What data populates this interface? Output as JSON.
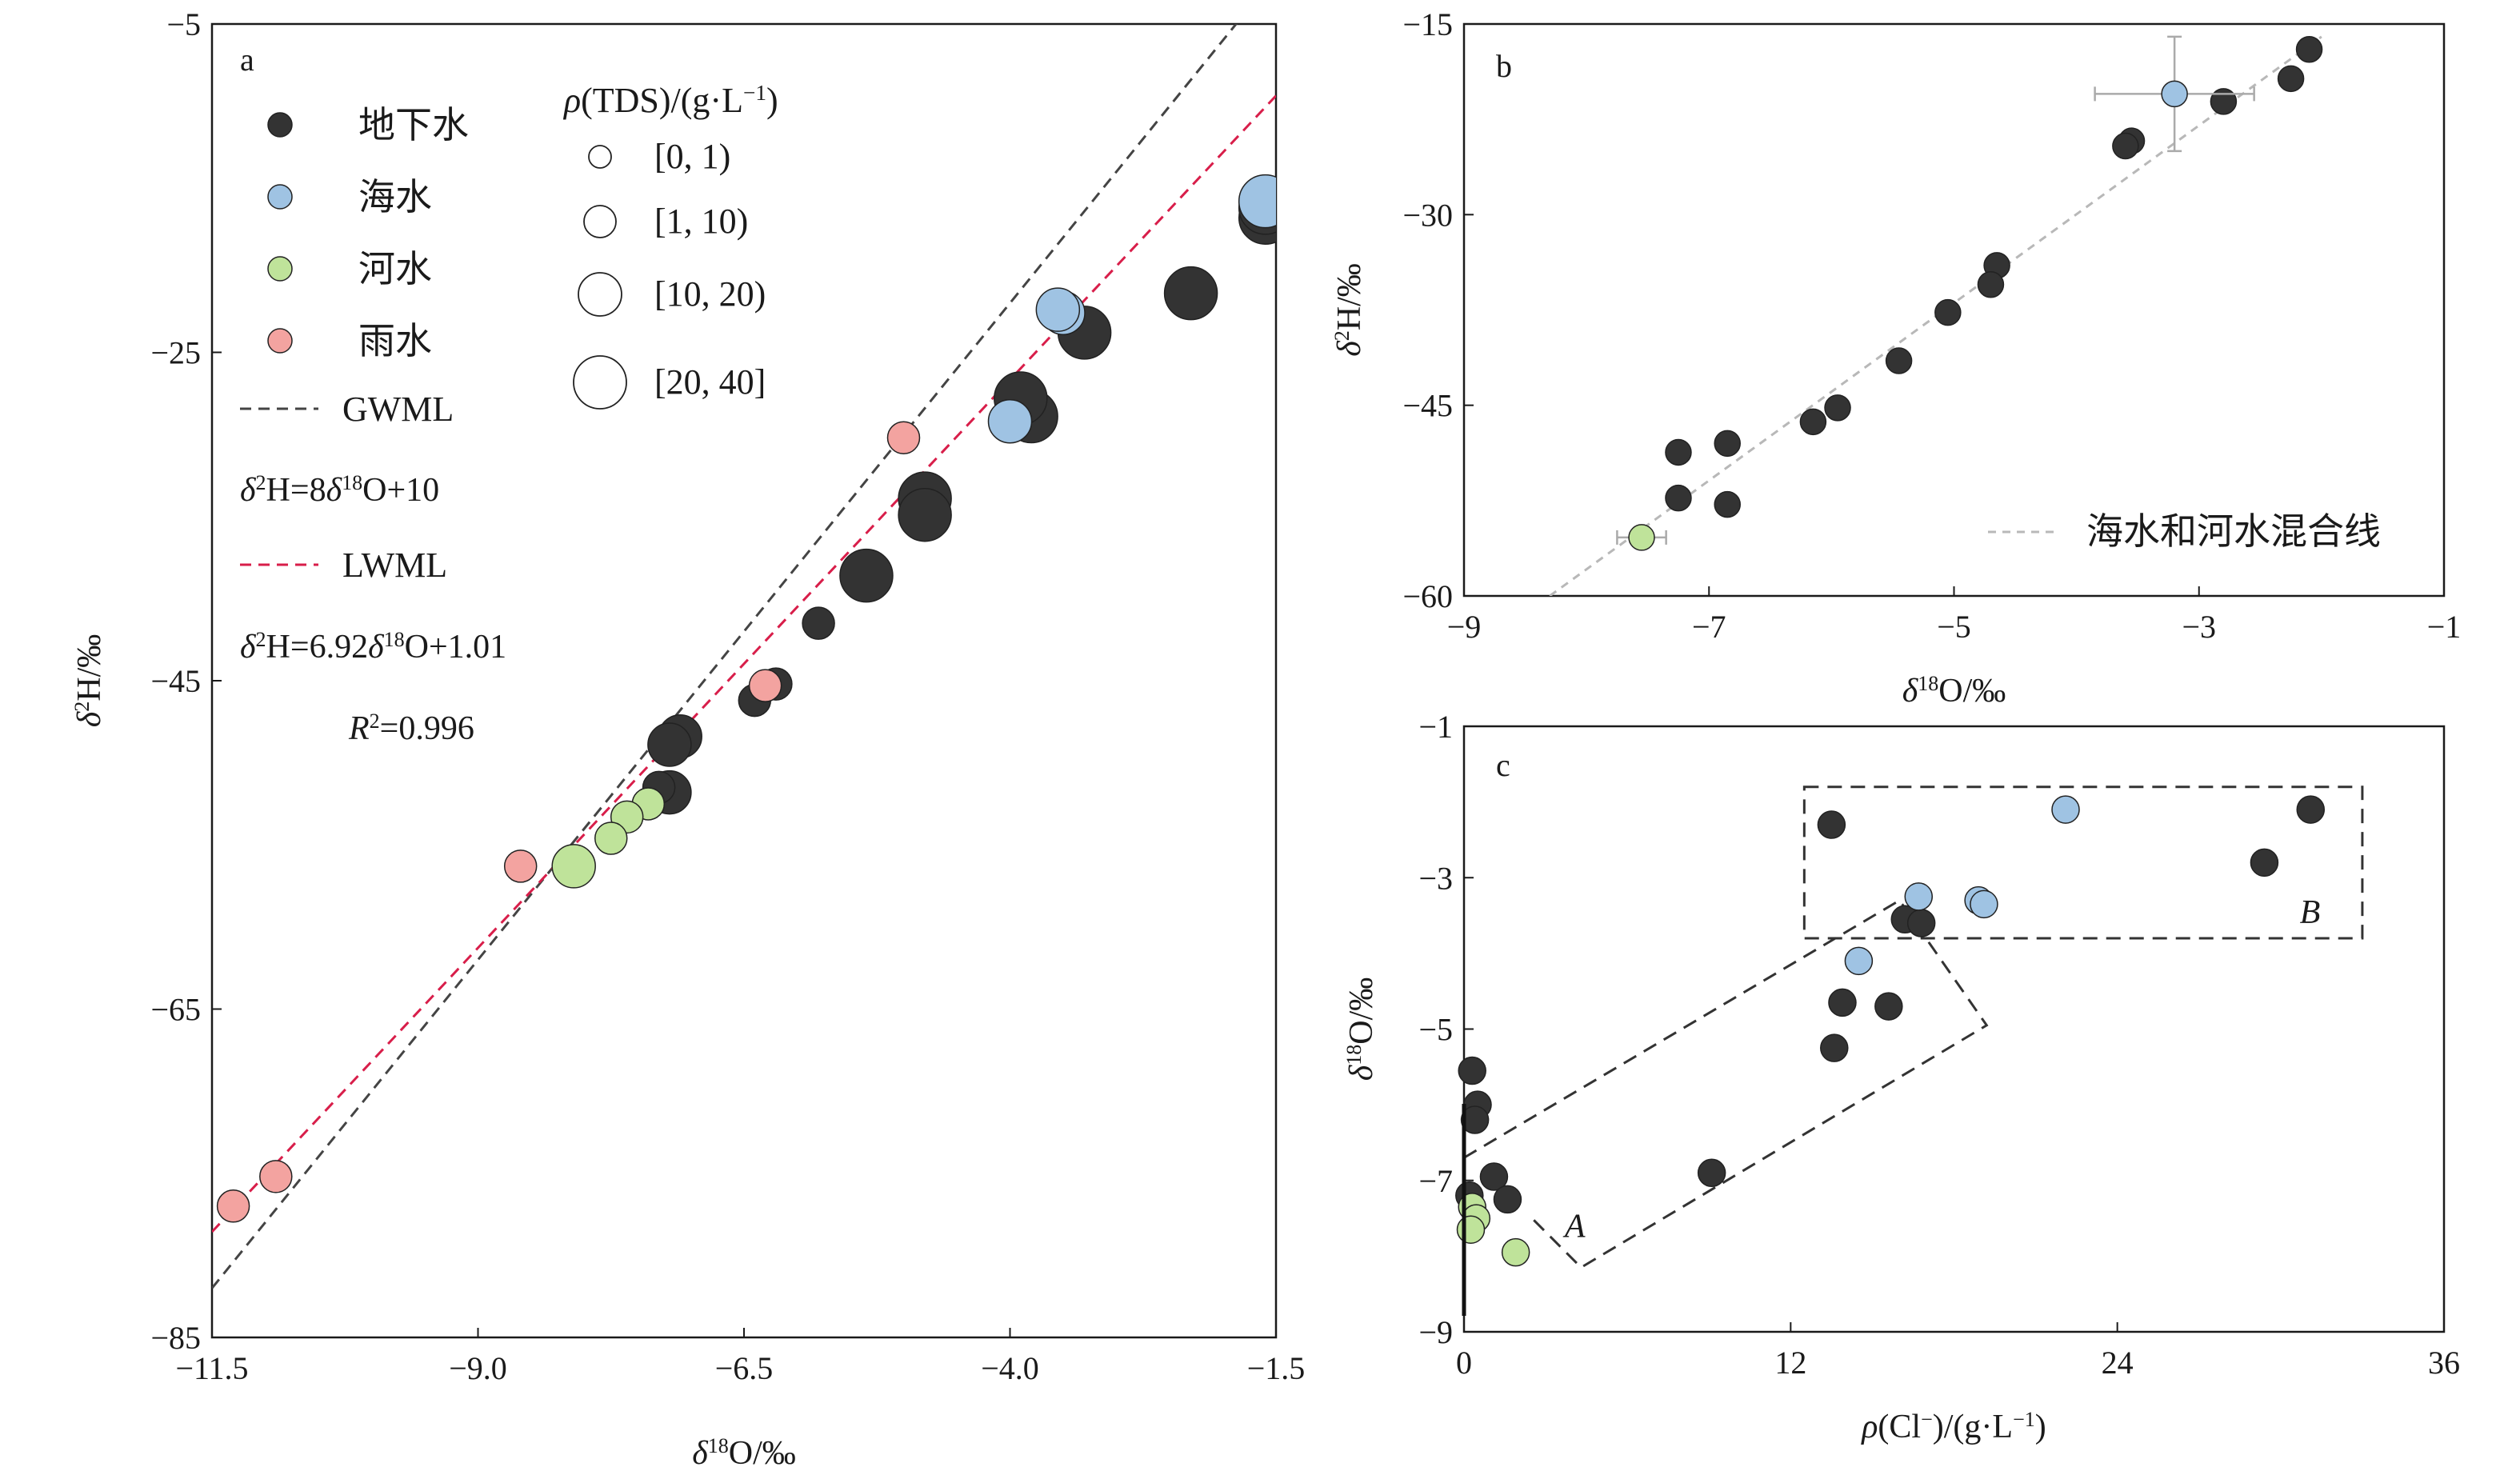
{
  "colors": {
    "groundwater": "#333333",
    "seawater": "#9fc3e3",
    "river": "#bfe39a",
    "rain": "#f3a3a0",
    "gwml": "#444444",
    "lwml": "#d81e4a",
    "mixing": "#b8b8b8"
  },
  "chart_data": [
    {
      "panel": "a",
      "type": "scatter",
      "xlabel": "δ18O/‰",
      "ylabel": "δ2H/‰",
      "xlim": [
        -11.5,
        -1.5
      ],
      "ylim": [
        -85,
        -5
      ],
      "xticks": [
        -11.5,
        -9.0,
        -6.5,
        -4.0,
        -1.5
      ],
      "xtick_labels": [
        "−11.5",
        "−9.0",
        "−6.5",
        "−4.0",
        "−1.5"
      ],
      "yticks": [
        -85,
        -65,
        -45,
        -25,
        -5
      ],
      "ytick_labels": [
        "−85",
        "−65",
        "−45",
        "−25",
        "−5"
      ],
      "legend": {
        "series_labels": [
          "地下水",
          "海水",
          "河水",
          "雨水"
        ],
        "size_title": "ρ(TDS)/(g·L⁻¹)",
        "size_labels": [
          "[0, 1)",
          "[1, 10)",
          "[10, 20)",
          "[20, 40]"
        ],
        "size_classes": [
          0,
          1,
          2,
          3
        ],
        "gwml_label": "GWML",
        "gwml_eq": "δ²H=8δ¹⁸O+10",
        "lwml_label": "LWML",
        "lwml_eq": "δ²H=6.92δ¹⁸O+1.01",
        "r2": "R²=0.996"
      },
      "lines": [
        {
          "name": "GWML",
          "slope": 8,
          "intercept": 10
        },
        {
          "name": "LWML",
          "slope": 6.92,
          "intercept": 1.01
        }
      ],
      "series": [
        {
          "name": "地下水",
          "points": [
            [
              -1.6,
              -16.8,
              3
            ],
            [
              -1.6,
              -16.2,
              3
            ],
            [
              -2.3,
              -21.4,
              3
            ],
            [
              -3.3,
              -23.8,
              3
            ],
            [
              -3.8,
              -28.9,
              3
            ],
            [
              -3.9,
              -27.8,
              3
            ],
            [
              -4.8,
              -33.9,
              3
            ],
            [
              -4.8,
              -34.9,
              3
            ],
            [
              -5.35,
              -38.6,
              3
            ],
            [
              -5.8,
              -41.5,
              1
            ],
            [
              -6.2,
              -45.2,
              1
            ],
            [
              -6.4,
              -46.2,
              1
            ],
            [
              -7.1,
              -48.4,
              2
            ],
            [
              -7.2,
              -48.9,
              2
            ],
            [
              -7.2,
              -51.8,
              2
            ],
            [
              -7.3,
              -51.5,
              1
            ]
          ]
        },
        {
          "name": "海水",
          "points": [
            [
              -1.6,
              -15.8,
              3
            ],
            [
              -3.5,
              -22.6,
              2
            ],
            [
              -3.55,
              -22.4,
              2
            ],
            [
              -4.0,
              -29.2,
              2
            ]
          ]
        },
        {
          "name": "河水",
          "points": [
            [
              -7.4,
              -52.5,
              1
            ],
            [
              -7.6,
              -53.3,
              1
            ],
            [
              -7.75,
              -54.6,
              1
            ],
            [
              -8.1,
              -56.3,
              2
            ]
          ]
        },
        {
          "name": "雨水",
          "points": [
            [
              -8.6,
              -56.3,
              1
            ],
            [
              -6.3,
              -45.3,
              1
            ],
            [
              -5.0,
              -30.2,
              1
            ],
            [
              -10.9,
              -75.2,
              1
            ],
            [
              -11.3,
              -77.0,
              1
            ]
          ]
        }
      ]
    },
    {
      "panel": "b",
      "type": "scatter",
      "xlabel": "δ18O/‰",
      "ylabel": "δ2H/‰",
      "xlim": [
        -9,
        -1
      ],
      "ylim": [
        -60,
        -15
      ],
      "xticks": [
        -9,
        -7,
        -5,
        -3,
        -1
      ],
      "xtick_labels": [
        "−9",
        "−7",
        "−5",
        "−3",
        "−1"
      ],
      "yticks": [
        -60,
        -45,
        -30,
        -15
      ],
      "ytick_labels": [
        "−60",
        "−45",
        "−30",
        "−15"
      ],
      "mixing_line_label": "海水和河水混合线",
      "mixing_line": [
        [
          -8.3,
          -60
        ],
        [
          -2.0,
          -16
        ]
      ],
      "series": [
        {
          "name": "地下水",
          "points": [
            [
              -2.1,
              -17.0
            ],
            [
              -2.25,
              -19.3
            ],
            [
              -2.8,
              -21.1
            ],
            [
              -3.55,
              -24.2
            ],
            [
              -3.6,
              -24.6
            ],
            [
              -4.65,
              -34.0
            ],
            [
              -4.7,
              -35.5
            ],
            [
              -5.05,
              -37.7
            ],
            [
              -5.45,
              -41.5
            ],
            [
              -5.95,
              -45.2
            ],
            [
              -6.15,
              -46.3
            ],
            [
              -6.85,
              -48.0
            ],
            [
              -7.25,
              -48.7
            ],
            [
              -7.25,
              -52.3
            ],
            [
              -6.85,
              -52.8
            ]
          ]
        },
        {
          "name": "海水",
          "points": [
            [
              -3.2,
              -20.5
            ]
          ],
          "xerr": 0.65,
          "yerr": 4.5
        },
        {
          "name": "河水",
          "points": [
            [
              -7.55,
              -55.4
            ]
          ],
          "xerr": 0.2,
          "yerr": 0.8
        }
      ]
    },
    {
      "panel": "c",
      "type": "scatter",
      "xlabel": "ρ(Cl⁻)/(g·L⁻¹)",
      "ylabel": "δ18O/‰",
      "xlim": [
        0,
        36
      ],
      "ylim": [
        -9,
        -1
      ],
      "xticks": [
        0,
        12,
        24,
        36
      ],
      "xtick_labels": [
        "0",
        "12",
        "24",
        "36"
      ],
      "yticks": [
        -9,
        -7,
        -5,
        -3,
        -1
      ],
      "ytick_labels": [
        "−9",
        "−7",
        "−5",
        "−3",
        "−1"
      ],
      "region_labels": [
        "A",
        "B"
      ],
      "series": [
        {
          "name": "地下水",
          "points": [
            [
              13.5,
              -2.3
            ],
            [
              16.2,
              -3.55
            ],
            [
              16.8,
              -3.6
            ],
            [
              31.1,
              -2.1
            ],
            [
              29.4,
              -2.8
            ],
            [
              13.6,
              -5.25
            ],
            [
              13.9,
              -4.65
            ],
            [
              15.6,
              -4.7
            ],
            [
              9.1,
              -6.9
            ],
            [
              0.3,
              -5.55
            ],
            [
              0.5,
              -6.0
            ],
            [
              0.4,
              -6.2
            ],
            [
              1.1,
              -6.95
            ],
            [
              1.6,
              -7.25
            ],
            [
              0.2,
              -7.2
            ]
          ]
        },
        {
          "name": "海水",
          "points": [
            [
              22.1,
              -2.1
            ],
            [
              16.7,
              -3.25
            ],
            [
              18.9,
              -3.3
            ],
            [
              19.1,
              -3.35
            ],
            [
              14.5,
              -4.1
            ]
          ]
        },
        {
          "name": "河水",
          "points": [
            [
              0.3,
              -7.35
            ],
            [
              0.45,
              -7.5
            ],
            [
              0.25,
              -7.65
            ],
            [
              1.9,
              -7.95
            ]
          ]
        }
      ]
    }
  ]
}
